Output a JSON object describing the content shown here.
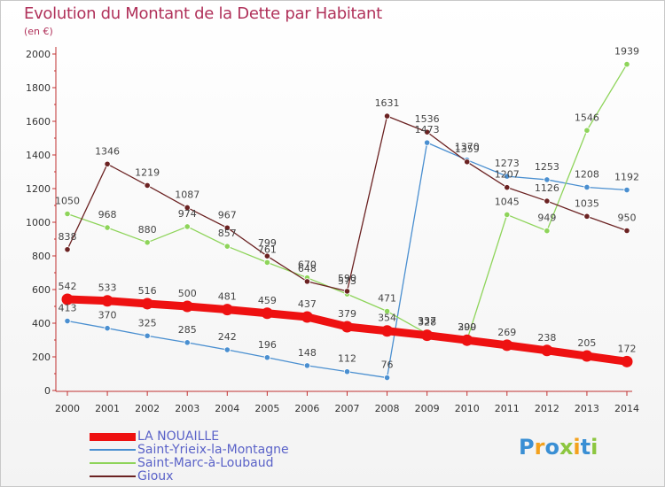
{
  "header": {
    "title": "Evolution du Montant de la Dette par Habitant",
    "subtitle": "(en €)"
  },
  "logo": {
    "text": "Proxiti",
    "colors": [
      "#3a8fd4",
      "#f3a11d",
      "#3a8fd4",
      "#8cc63f",
      "#f3a11d",
      "#3a8fd4",
      "#8cc63f"
    ]
  },
  "chart_data": {
    "type": "line",
    "title": "Evolution du Montant de la Dette par Habitant",
    "subtitle": "(en €)",
    "x": [
      "2000",
      "2001",
      "2002",
      "2003",
      "2004",
      "2005",
      "2006",
      "2007",
      "2008",
      "2009",
      "2010",
      "2011",
      "2012",
      "2013",
      "2014"
    ],
    "ylim": [
      0,
      2000
    ],
    "yticks": [
      0,
      200,
      400,
      600,
      800,
      1000,
      1200,
      1400,
      1600,
      1800,
      2000
    ],
    "grid": false,
    "legend_position": "bottom-left",
    "series": [
      {
        "name": "LA NOUAILLE",
        "color": "#ee1111",
        "emphasis": true,
        "values": [
          542,
          533,
          516,
          500,
          481,
          459,
          437,
          379,
          354,
          328,
          299,
          269,
          238,
          205,
          172
        ]
      },
      {
        "name": "Saint-Yrieix-la-Montagne",
        "color": "#4a8fd0",
        "values": [
          413,
          370,
          325,
          285,
          242,
          196,
          148,
          112,
          76,
          1473,
          1370,
          1273,
          1253,
          1208,
          1192
        ]
      },
      {
        "name": "Saint-Marc-à-Loubaud",
        "color": "#8ed45a",
        "values": [
          1050,
          968,
          880,
          974,
          857,
          761,
          670,
          573,
          471,
          337,
          300,
          1045,
          949,
          1546,
          1939
        ]
      },
      {
        "name": "Gioux",
        "color": "#6b2222",
        "values": [
          838,
          1346,
          1219,
          1087,
          967,
          799,
          648,
          590,
          1631,
          1536,
          1359,
          1207,
          1126,
          1035,
          950
        ]
      }
    ]
  }
}
